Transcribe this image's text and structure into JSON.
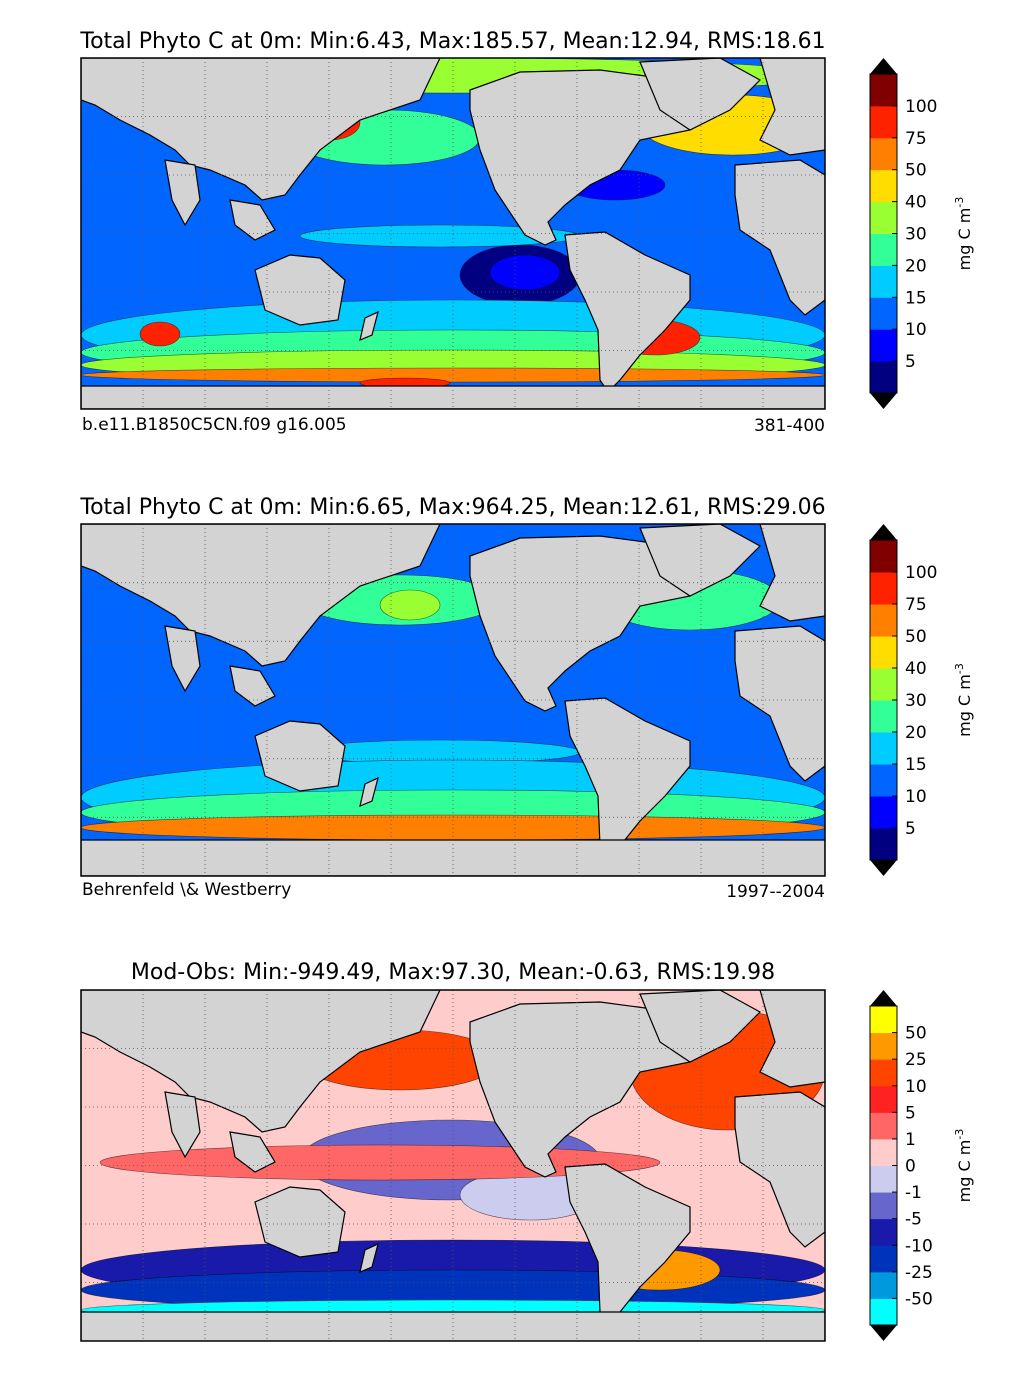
{
  "chart_data": [
    {
      "type": "heatmap",
      "title": "Total Phyto C at 0m: Min:6.43, Max:185.57, Mean:12.94, RMS:18.61",
      "caption_left": "b.e11.B1850C5CN.f09 g16.005",
      "caption_right": "381-400",
      "colorbar": {
        "label": "mg C m",
        "label_exponent": "-3",
        "ticks": [
          "5",
          "10",
          "15",
          "20",
          "30",
          "40",
          "50",
          "75",
          "100"
        ],
        "colors": [
          "#000080",
          "#0000ff",
          "#0066ff",
          "#00ccff",
          "#33ff99",
          "#99ff33",
          "#ffdd00",
          "#ff7f00",
          "#ff2200",
          "#800000"
        ]
      },
      "background_level": 2,
      "patches": [
        {
          "region": "Arctic",
          "level": 5
        },
        {
          "region": "North Atlantic",
          "level": 6
        },
        {
          "region": "North Pacific",
          "level": 4
        },
        {
          "region": "North Atlantic subtropical gyre",
          "level": 1
        },
        {
          "region": "South Pacific gyre",
          "level": 0
        },
        {
          "region": "South Pacific gyre",
          "level": 1
        },
        {
          "region": "Equatorial Pacific",
          "level": 3
        },
        {
          "region": "Southern Ocean",
          "level": 3
        },
        {
          "region": "Southern Ocean",
          "level": 4
        },
        {
          "region": "Southern Ocean",
          "level": 5
        },
        {
          "region": "Southern Ocean",
          "level": 7
        },
        {
          "region": "Patagonian shelf",
          "level": 8
        },
        {
          "region": "Kerguelen",
          "level": 8
        },
        {
          "region": "Okhotsk / Bering",
          "level": 8
        },
        {
          "region": "Antarctic coast",
          "level": 8
        }
      ]
    },
    {
      "type": "heatmap",
      "title": "Total Phyto C at 0m: Min:6.65, Max:964.25, Mean:12.61, RMS:29.06",
      "caption_left": "Behrenfeld \\& Westberry",
      "caption_right": "1997--2004",
      "colorbar": {
        "label": "mg C m",
        "label_exponent": "-3",
        "ticks": [
          "5",
          "10",
          "15",
          "20",
          "30",
          "40",
          "50",
          "75",
          "100"
        ],
        "colors": [
          "#000080",
          "#0000ff",
          "#0066ff",
          "#00ccff",
          "#33ff99",
          "#99ff33",
          "#ffdd00",
          "#ff7f00",
          "#ff2200",
          "#800000"
        ]
      },
      "background_level": 2,
      "patches": [
        {
          "region": "Equatorial Pacific",
          "level": 3
        },
        {
          "region": "Southern Ocean",
          "level": 3
        },
        {
          "region": "Southern Ocean",
          "level": 4
        },
        {
          "region": "North Pacific",
          "level": 4
        },
        {
          "region": "North Atlantic",
          "level": 4
        },
        {
          "region": "Southern Ocean",
          "level": 5
        },
        {
          "region": "Coastal upwelling",
          "level": 7
        },
        {
          "region": "Antarctic coast",
          "level": 8
        }
      ]
    },
    {
      "type": "heatmap",
      "title": "Mod-Obs: Min:-949.49, Max:97.30, Mean:-0.63, RMS:19.98",
      "caption_left": "",
      "caption_right": "",
      "colorbar": {
        "label": "mg C m",
        "label_exponent": "-3",
        "ticks": [
          "-50",
          "-25",
          "-10",
          "-5",
          "-1",
          "0",
          "1",
          "5",
          "10",
          "25",
          "50"
        ],
        "colors": [
          "#00ffff",
          "#0099dd",
          "#0033bb",
          "#1a1aaa",
          "#6666cc",
          "#ccccee",
          "#ffcccc",
          "#ff6666",
          "#ff2222",
          "#ff4400",
          "#ff9900",
          "#ffff00"
        ]
      },
      "background_level": 6,
      "patches": [
        {
          "region": "Subtropical gyres",
          "level": 4
        },
        {
          "region": "Subtropical gyres",
          "level": 5
        },
        {
          "region": "Equatorial Pacific",
          "level": 7
        },
        {
          "region": "North Atlantic",
          "level": 9
        },
        {
          "region": "North Pacific",
          "level": 9
        },
        {
          "region": "Southern Ocean",
          "level": 3
        },
        {
          "region": "Southern Ocean",
          "level": 2
        },
        {
          "region": "Patagonian shelf",
          "level": 10
        },
        {
          "region": "Southern Ocean",
          "level": 0
        }
      ]
    }
  ]
}
